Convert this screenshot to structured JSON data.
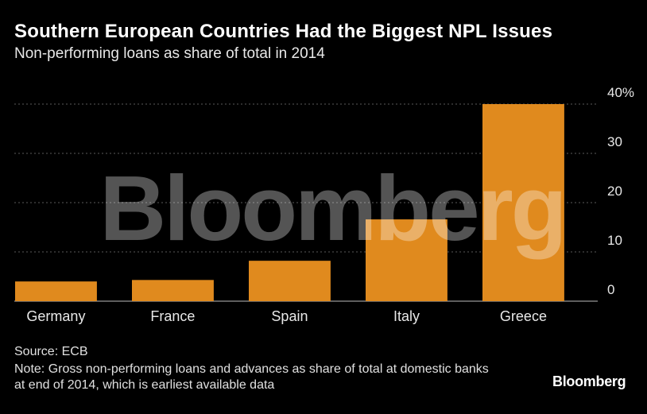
{
  "header": {
    "title": "Southern European Countries Had the Biggest NPL Issues",
    "subtitle": "Non-performing loans as share of total in 2014"
  },
  "footer": {
    "source": "Source: ECB",
    "note": "Note: Gross non-performing loans and advances as share of total at domestic banks at end of 2014, which is earliest available data",
    "logo": "Bloomberg"
  },
  "watermark": "Bloomberg",
  "colors": {
    "bar": "#e08a1e",
    "background": "#000000",
    "grid": "#5a5a5a",
    "text": "#ffffff"
  },
  "chart_data": {
    "type": "bar",
    "categories": [
      "Germany",
      "France",
      "Spain",
      "Italy",
      "Greece"
    ],
    "values": [
      4.0,
      4.3,
      8.2,
      16.6,
      40.0
    ],
    "ylim": [
      0,
      40
    ],
    "yticks": [
      0,
      10,
      20,
      30,
      40
    ],
    "ytick_labels": [
      "0",
      "10",
      "20",
      "30",
      "40%"
    ],
    "y_axis_position": "right",
    "grid": true
  }
}
